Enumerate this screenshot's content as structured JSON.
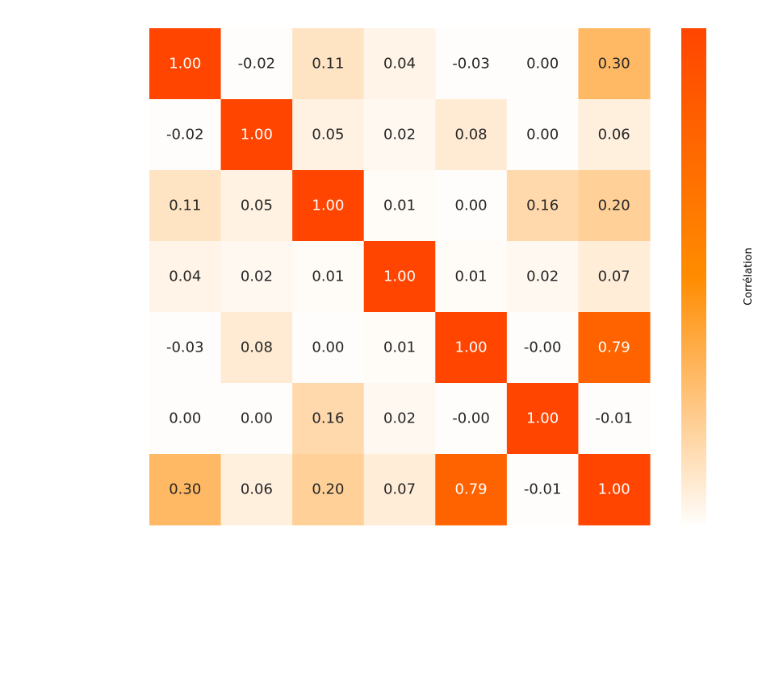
{
  "chart_data": {
    "type": "heatmap",
    "title": "",
    "xlabel": "",
    "ylabel": "",
    "row_labels": [],
    "col_labels": [],
    "values": [
      [
        1.0,
        -0.02,
        0.11,
        0.04,
        -0.03,
        0.0,
        0.3
      ],
      [
        -0.02,
        1.0,
        0.05,
        0.02,
        0.08,
        0.0,
        0.06
      ],
      [
        0.11,
        0.05,
        1.0,
        0.01,
        0.0,
        0.16,
        0.2
      ],
      [
        0.04,
        0.02,
        0.01,
        1.0,
        0.01,
        0.02,
        0.07
      ],
      [
        -0.03,
        0.08,
        0.0,
        0.01,
        1.0,
        -0.0,
        0.79
      ],
      [
        0.0,
        0.0,
        0.16,
        0.02,
        -0.0,
        1.0,
        -0.01
      ],
      [
        0.3,
        0.06,
        0.2,
        0.07,
        0.79,
        -0.01,
        1.0
      ]
    ],
    "cell_text": [
      [
        "1.00",
        "-0.02",
        "0.11",
        "0.04",
        "-0.03",
        "0.00",
        "0.30"
      ],
      [
        "-0.02",
        "1.00",
        "0.05",
        "0.02",
        "0.08",
        "0.00",
        "0.06"
      ],
      [
        "0.11",
        "0.05",
        "1.00",
        "0.01",
        "0.00",
        "0.16",
        "0.20"
      ],
      [
        "0.04",
        "0.02",
        "0.01",
        "1.00",
        "0.01",
        "0.02",
        "0.07"
      ],
      [
        "-0.03",
        "0.08",
        "0.00",
        "0.01",
        "1.00",
        "-0.00",
        "0.79"
      ],
      [
        "0.00",
        "0.00",
        "0.16",
        "0.02",
        "-0.00",
        "1.00",
        "-0.01"
      ],
      [
        "0.30",
        "0.06",
        "0.20",
        "0.07",
        "0.79",
        "-0.01",
        "1.00"
      ]
    ],
    "colorbar": {
      "label": "Corrélation",
      "position": "right",
      "ticks": []
    },
    "colormap": {
      "low": "#fffdfb",
      "mid": "#ff8c00",
      "high": "#ff4500"
    },
    "text_colors": {
      "dark": "#262626",
      "light": "#ffffff"
    },
    "grid": false,
    "legend": "none"
  }
}
